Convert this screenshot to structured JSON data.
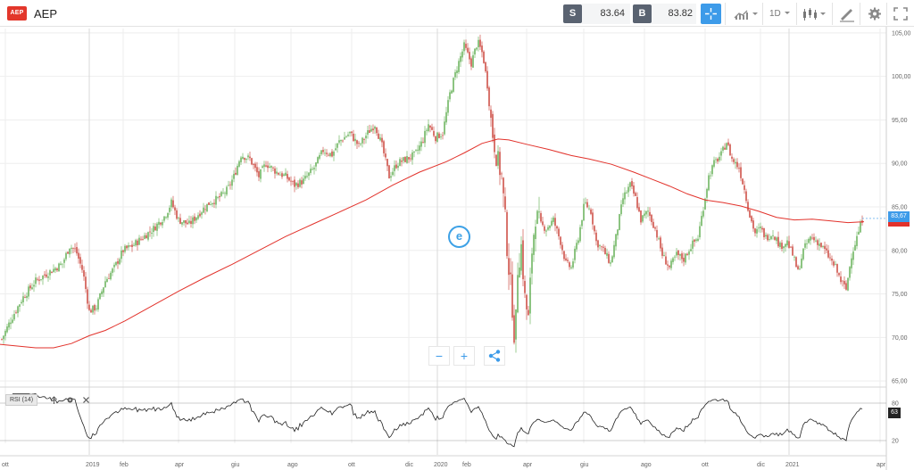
{
  "toolbar": {
    "logo_text": "AEP",
    "symbol": "AEP",
    "sell_label": "S",
    "sell_price": "83.64",
    "buy_label": "B",
    "buy_price": "83.82",
    "timeframe": "1D",
    "icons": [
      "logo",
      "crosshair-icon",
      "chart-type-icon",
      "timeframe-dropdown",
      "candlestick-icon",
      "drawing-icon",
      "gear-icon",
      "fullscreen-icon"
    ]
  },
  "price_tag": "83,67",
  "rsi": {
    "title": "RSI (14)",
    "value_tag": "63",
    "levels": [
      80,
      20
    ],
    "level_labels": [
      "80",
      "20"
    ]
  },
  "overlay": {
    "zoom_out": "−",
    "zoom_in": "+",
    "share_icon": "share-icon"
  },
  "colors": {
    "up": "#5aaa4b",
    "down": "#c8382f",
    "ma": "#e2322b",
    "accent": "#3d9be9"
  },
  "chart_data": {
    "type": "candlestick",
    "symbol": "AEP",
    "y_ticks": [
      65,
      70,
      75,
      80,
      85,
      90,
      95,
      100,
      105
    ],
    "y_tick_labels": [
      "65,00",
      "70,00",
      "75,00",
      "80,00",
      "85,00",
      "90,00",
      "95,00",
      "100,00",
      "105,00"
    ],
    "ylim": [
      64.5,
      105.5
    ],
    "x_ticks": [
      "ott",
      "2019",
      "feb",
      "apr",
      "giu",
      "ago",
      "ott",
      "dic",
      "2020",
      "feb",
      "apr",
      "giu",
      "ago",
      "ott",
      "dic",
      "2021",
      "apr"
    ],
    "last_price": 83.67,
    "moving_average_anchors": [
      [
        0,
        69.2
      ],
      [
        40,
        68.8
      ],
      [
        60,
        68.8
      ],
      [
        80,
        69.3
      ],
      [
        100,
        70.2
      ],
      [
        118,
        70.8
      ],
      [
        140,
        71.9
      ],
      [
        170,
        73.6
      ],
      [
        200,
        75.3
      ],
      [
        230,
        76.9
      ],
      [
        260,
        78.4
      ],
      [
        290,
        80.0
      ],
      [
        320,
        81.6
      ],
      [
        350,
        83.0
      ],
      [
        380,
        84.4
      ],
      [
        410,
        85.8
      ],
      [
        440,
        87.5
      ],
      [
        470,
        89.0
      ],
      [
        500,
        90.2
      ],
      [
        520,
        91.2
      ],
      [
        540,
        92.3
      ],
      [
        558,
        92.8
      ],
      [
        570,
        92.7
      ],
      [
        590,
        92.2
      ],
      [
        615,
        91.6
      ],
      [
        640,
        90.9
      ],
      [
        660,
        90.5
      ],
      [
        685,
        89.9
      ],
      [
        710,
        89.0
      ],
      [
        730,
        88.2
      ],
      [
        750,
        87.4
      ],
      [
        770,
        86.5
      ],
      [
        790,
        85.8
      ],
      [
        810,
        85.5
      ],
      [
        830,
        85.1
      ],
      [
        850,
        84.5
      ],
      [
        870,
        83.8
      ],
      [
        890,
        83.5
      ],
      [
        910,
        83.6
      ],
      [
        930,
        83.4
      ],
      [
        950,
        83.2
      ],
      [
        968,
        83.3
      ]
    ],
    "price_anchors": [
      [
        2,
        69.8
      ],
      [
        12,
        72.0
      ],
      [
        25,
        74.5
      ],
      [
        40,
        76.5
      ],
      [
        55,
        77.5
      ],
      [
        70,
        78.5
      ],
      [
        78,
        80.5
      ],
      [
        85,
        80.0
      ],
      [
        93,
        77.5
      ],
      [
        100,
        73.0
      ],
      [
        108,
        73.5
      ],
      [
        118,
        76.5
      ],
      [
        128,
        78.0
      ],
      [
        138,
        80.0
      ],
      [
        148,
        80.5
      ],
      [
        160,
        81.5
      ],
      [
        172,
        82.5
      ],
      [
        185,
        84.0
      ],
      [
        192,
        85.5
      ],
      [
        200,
        83.5
      ],
      [
        212,
        83.0
      ],
      [
        225,
        84.5
      ],
      [
        235,
        85.5
      ],
      [
        245,
        86.0
      ],
      [
        255,
        87.0
      ],
      [
        262,
        88.5
      ],
      [
        270,
        91.0
      ],
      [
        280,
        90.5
      ],
      [
        290,
        88.5
      ],
      [
        298,
        90.0
      ],
      [
        310,
        89.0
      ],
      [
        320,
        88.5
      ],
      [
        330,
        87.5
      ],
      [
        340,
        88.0
      ],
      [
        352,
        89.5
      ],
      [
        362,
        91.5
      ],
      [
        372,
        91.0
      ],
      [
        380,
        92.5
      ],
      [
        392,
        93.5
      ],
      [
        402,
        92.0
      ],
      [
        412,
        93.5
      ],
      [
        420,
        94.5
      ],
      [
        428,
        92.0
      ],
      [
        436,
        88.5
      ],
      [
        445,
        90.0
      ],
      [
        455,
        90.5
      ],
      [
        465,
        91.0
      ],
      [
        473,
        92.5
      ],
      [
        480,
        94.5
      ],
      [
        488,
        93.0
      ],
      [
        496,
        93.5
      ],
      [
        504,
        98.0
      ],
      [
        512,
        101.0
      ],
      [
        520,
        103.5
      ],
      [
        528,
        101.5
      ],
      [
        535,
        104.0
      ],
      [
        541,
        102.5
      ],
      [
        546,
        99.0
      ],
      [
        551,
        94.0
      ],
      [
        556,
        91.0
      ],
      [
        562,
        88.5
      ],
      [
        566,
        83.5
      ],
      [
        569,
        79.0
      ],
      [
        573,
        75.0
      ],
      [
        577,
        69.0
      ],
      [
        580,
        78.0
      ],
      [
        584,
        80.5
      ],
      [
        588,
        74.5
      ],
      [
        592,
        72.0
      ],
      [
        596,
        80.0
      ],
      [
        600,
        84.0
      ],
      [
        605,
        83.0
      ],
      [
        612,
        82.5
      ],
      [
        620,
        83.5
      ],
      [
        628,
        81.0
      ],
      [
        634,
        78.5
      ],
      [
        640,
        78.0
      ],
      [
        648,
        81.5
      ],
      [
        655,
        85.5
      ],
      [
        662,
        84.5
      ],
      [
        668,
        81.0
      ],
      [
        676,
        80.0
      ],
      [
        684,
        78.5
      ],
      [
        690,
        81.5
      ],
      [
        698,
        86.0
      ],
      [
        706,
        87.5
      ],
      [
        712,
        86.0
      ],
      [
        718,
        83.5
      ],
      [
        726,
        84.5
      ],
      [
        734,
        82.5
      ],
      [
        742,
        79.5
      ],
      [
        750,
        78.0
      ],
      [
        758,
        79.5
      ],
      [
        766,
        79.0
      ],
      [
        774,
        80.5
      ],
      [
        782,
        81.5
      ],
      [
        788,
        85.0
      ],
      [
        794,
        88.5
      ],
      [
        800,
        90.0
      ],
      [
        808,
        91.0
      ],
      [
        814,
        92.5
      ],
      [
        820,
        90.5
      ],
      [
        828,
        89.5
      ],
      [
        834,
        87.0
      ],
      [
        840,
        84.0
      ],
      [
        846,
        82.0
      ],
      [
        852,
        82.5
      ],
      [
        858,
        81.5
      ],
      [
        866,
        82.0
      ],
      [
        874,
        80.5
      ],
      [
        882,
        81.0
      ],
      [
        888,
        79.5
      ],
      [
        894,
        77.5
      ],
      [
        900,
        80.0
      ],
      [
        908,
        81.5
      ],
      [
        916,
        81.0
      ],
      [
        924,
        80.0
      ],
      [
        930,
        79.0
      ],
      [
        936,
        78.0
      ],
      [
        942,
        76.5
      ],
      [
        948,
        75.5
      ],
      [
        954,
        79.5
      ],
      [
        960,
        81.5
      ],
      [
        966,
        83.6
      ]
    ]
  }
}
